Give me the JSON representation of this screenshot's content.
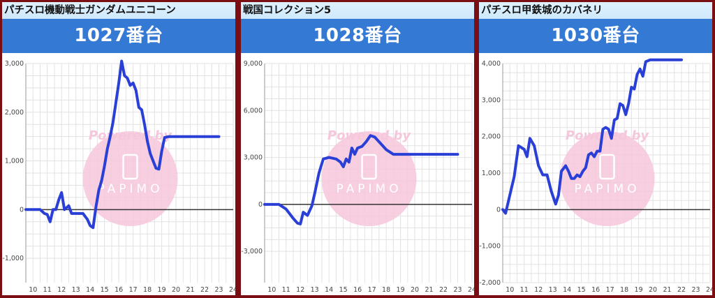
{
  "panels": [
    {
      "title": "パチスロ機動戦士ガンダムユニコーン",
      "machine_no": "1027番台"
    },
    {
      "title": "戦国コレクション5",
      "machine_no": "1028番台"
    },
    {
      "title": "パチスロ甲鉄城のカバネリ",
      "machine_no": "1030番台"
    }
  ],
  "watermark": {
    "text": "Powered by",
    "brand": "PAPIMO"
  },
  "colors": {
    "line": "#2a3fd6",
    "header": "#3479d4",
    "border": "#7a0e12",
    "watermark": "#f6c7dc"
  },
  "chart_data": [
    {
      "type": "line",
      "title": "",
      "xlabel": "",
      "ylabel": "",
      "xlim": [
        9.5,
        24
      ],
      "ylim": [
        -1500,
        3000
      ],
      "yticks": [
        -1000,
        0,
        1000,
        2000,
        3000
      ],
      "ytick_labels": [
        "-1,000",
        "0",
        "1,000",
        "2,000",
        "3,000"
      ],
      "xticks": [
        10,
        11,
        12,
        13,
        14,
        15,
        16,
        17,
        18,
        19,
        20,
        21,
        22,
        23,
        24
      ],
      "grid": true,
      "series": [
        {
          "values": [
            [
              9.5,
              0
            ],
            [
              10.5,
              0
            ],
            [
              10.8,
              -80
            ],
            [
              11.0,
              -100
            ],
            [
              11.2,
              -250
            ],
            [
              11.4,
              0
            ],
            [
              11.6,
              0
            ],
            [
              11.8,
              200
            ],
            [
              12.0,
              350
            ],
            [
              12.2,
              0
            ],
            [
              12.5,
              80
            ],
            [
              12.7,
              -80
            ],
            [
              13.0,
              -80
            ],
            [
              13.5,
              -80
            ],
            [
              13.8,
              -200
            ],
            [
              14.0,
              -330
            ],
            [
              14.2,
              -370
            ],
            [
              14.4,
              50
            ],
            [
              14.6,
              400
            ],
            [
              14.8,
              600
            ],
            [
              15.0,
              900
            ],
            [
              15.2,
              1250
            ],
            [
              15.4,
              1500
            ],
            [
              15.6,
              1800
            ],
            [
              15.8,
              2200
            ],
            [
              16.0,
              2600
            ],
            [
              16.2,
              3050
            ],
            [
              16.4,
              2750
            ],
            [
              16.6,
              2700
            ],
            [
              16.8,
              2550
            ],
            [
              17.0,
              2600
            ],
            [
              17.2,
              2450
            ],
            [
              17.4,
              2100
            ],
            [
              17.6,
              2050
            ],
            [
              17.8,
              1750
            ],
            [
              18.0,
              1400
            ],
            [
              18.2,
              1150
            ],
            [
              18.4,
              1000
            ],
            [
              18.6,
              850
            ],
            [
              18.8,
              830
            ],
            [
              19.0,
              1200
            ],
            [
              19.2,
              1480
            ],
            [
              19.5,
              1500
            ],
            [
              20.0,
              1500
            ],
            [
              21.0,
              1500
            ],
            [
              22.0,
              1500
            ],
            [
              23.0,
              1500
            ]
          ]
        }
      ]
    },
    {
      "type": "line",
      "title": "",
      "xlabel": "",
      "ylabel": "",
      "xlim": [
        9.5,
        24
      ],
      "ylim": [
        -5000,
        9000
      ],
      "yticks": [
        -3000,
        0,
        3000,
        6000,
        9000
      ],
      "ytick_labels": [
        "-3,000",
        "0",
        "3,000",
        "6,000",
        "9,000"
      ],
      "xticks": [
        10,
        11,
        12,
        13,
        14,
        15,
        16,
        17,
        18,
        19,
        20,
        21,
        22,
        23,
        24
      ],
      "grid": true,
      "series": [
        {
          "values": [
            [
              9.5,
              0
            ],
            [
              10.5,
              0
            ],
            [
              11.0,
              -300
            ],
            [
              11.5,
              -900
            ],
            [
              11.8,
              -1200
            ],
            [
              12.0,
              -1250
            ],
            [
              12.2,
              -500
            ],
            [
              12.5,
              -700
            ],
            [
              12.8,
              -100
            ],
            [
              13.0,
              700
            ],
            [
              13.3,
              2000
            ],
            [
              13.6,
              2900
            ],
            [
              14.0,
              3000
            ],
            [
              14.5,
              2900
            ],
            [
              14.8,
              2700
            ],
            [
              15.0,
              2400
            ],
            [
              15.2,
              2900
            ],
            [
              15.4,
              2700
            ],
            [
              15.6,
              3600
            ],
            [
              15.8,
              3200
            ],
            [
              16.0,
              3600
            ],
            [
              16.3,
              3700
            ],
            [
              16.6,
              4000
            ],
            [
              16.9,
              4400
            ],
            [
              17.2,
              4300
            ],
            [
              17.6,
              3900
            ],
            [
              18.0,
              3500
            ],
            [
              18.5,
              3200
            ],
            [
              19.0,
              3200
            ],
            [
              20.0,
              3200
            ],
            [
              21.0,
              3200
            ],
            [
              22.0,
              3200
            ],
            [
              23.0,
              3200
            ]
          ]
        }
      ]
    },
    {
      "type": "line",
      "title": "",
      "xlabel": "",
      "ylabel": "",
      "xlim": [
        9.5,
        24
      ],
      "ylim": [
        -2000,
        4000
      ],
      "yticks": [
        -2000,
        -1000,
        0,
        1000,
        2000,
        3000,
        4000
      ],
      "ytick_labels": [
        "-2,000",
        "-1,000",
        "0",
        "1,000",
        "2,000",
        "3,000",
        "4,000"
      ],
      "xticks": [
        10,
        11,
        12,
        13,
        14,
        15,
        16,
        17,
        18,
        19,
        20,
        21,
        22,
        23,
        24
      ],
      "grid": true,
      "series": [
        {
          "values": [
            [
              9.5,
              0
            ],
            [
              9.7,
              -100
            ],
            [
              10.0,
              400
            ],
            [
              10.3,
              900
            ],
            [
              10.6,
              1750
            ],
            [
              11.0,
              1650
            ],
            [
              11.2,
              1450
            ],
            [
              11.4,
              1950
            ],
            [
              11.7,
              1750
            ],
            [
              12.0,
              1200
            ],
            [
              12.3,
              950
            ],
            [
              12.6,
              950
            ],
            [
              12.9,
              500
            ],
            [
              13.2,
              150
            ],
            [
              13.4,
              400
            ],
            [
              13.6,
              1050
            ],
            [
              13.9,
              1200
            ],
            [
              14.1,
              1050
            ],
            [
              14.3,
              850
            ],
            [
              14.5,
              850
            ],
            [
              14.7,
              950
            ],
            [
              14.9,
              900
            ],
            [
              15.1,
              1050
            ],
            [
              15.3,
              1150
            ],
            [
              15.5,
              1500
            ],
            [
              15.7,
              1550
            ],
            [
              15.9,
              1450
            ],
            [
              16.1,
              1600
            ],
            [
              16.3,
              1600
            ],
            [
              16.5,
              2200
            ],
            [
              16.7,
              2250
            ],
            [
              16.9,
              2200
            ],
            [
              17.1,
              1950
            ],
            [
              17.3,
              2450
            ],
            [
              17.5,
              2500
            ],
            [
              17.7,
              2900
            ],
            [
              17.9,
              2850
            ],
            [
              18.1,
              2600
            ],
            [
              18.3,
              2900
            ],
            [
              18.5,
              3350
            ],
            [
              18.7,
              3300
            ],
            [
              18.9,
              3700
            ],
            [
              19.1,
              3850
            ],
            [
              19.3,
              3650
            ],
            [
              19.5,
              4050
            ],
            [
              19.8,
              4100
            ],
            [
              20.5,
              4100
            ],
            [
              21.5,
              4100
            ],
            [
              22.0,
              4100
            ]
          ]
        }
      ]
    }
  ]
}
